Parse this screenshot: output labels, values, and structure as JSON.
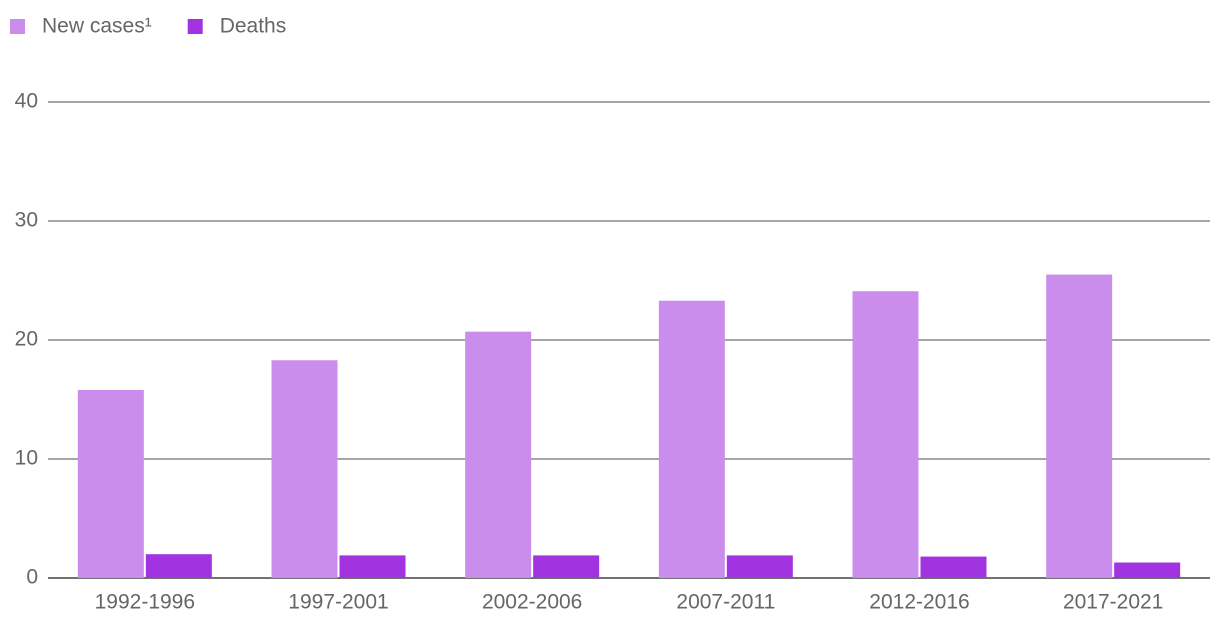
{
  "chart_data": {
    "type": "bar",
    "categories": [
      "1992-1996",
      "1997-2001",
      "2002-2006",
      "2007-2011",
      "2012-2016",
      "2017-2021"
    ],
    "series": [
      {
        "name": "New cases¹",
        "color": "#cb8dec",
        "values": [
          15.8,
          18.3,
          20.7,
          23.3,
          24.1,
          25.5
        ]
      },
      {
        "name": "Deaths",
        "color": "#a233e0",
        "values": [
          2.0,
          1.9,
          1.9,
          1.9,
          1.8,
          1.3
        ]
      }
    ],
    "ylim": [
      0,
      40
    ],
    "yticks": [
      0,
      10,
      20,
      30,
      40
    ],
    "grid": true,
    "legend": "top-left"
  }
}
